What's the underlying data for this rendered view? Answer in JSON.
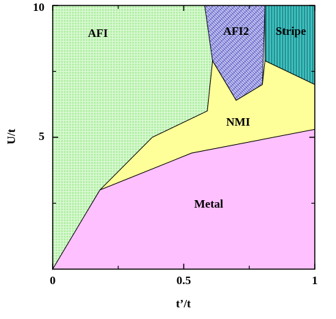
{
  "chart_data": {
    "type": "phase-diagram",
    "xlabel": "t’/t",
    "ylabel": "U/t",
    "xlim": [
      0,
      1
    ],
    "ylim": [
      0,
      10
    ],
    "xticks": [
      0,
      0.5,
      1
    ],
    "yticks": [
      5,
      10
    ],
    "xticks_minor": [
      0.25,
      0.75
    ],
    "yticks_minor": [
      2.5,
      7.5
    ],
    "regions": [
      {
        "name": "AFI",
        "color": "#b4f0a8",
        "x": [
          0,
          0,
          0.58,
          0.61,
          0.59,
          0.38,
          0.18
        ],
        "y": [
          0,
          10,
          10,
          7.9,
          6.0,
          5.0,
          3.0
        ]
      },
      {
        "name": "AFI2",
        "color": "#c4c4f4",
        "x": [
          0.58,
          0.61,
          0.7,
          0.8,
          0.81
        ],
        "y": [
          10,
          7.9,
          6.4,
          7.0,
          10
        ]
      },
      {
        "name": "Stripe",
        "color": "#40c4c4",
        "x": [
          0.81,
          0.81,
          1,
          1
        ],
        "y": [
          10,
          7.9,
          7.0,
          10
        ]
      },
      {
        "name": "NMI",
        "color": "#ffff99",
        "x": [
          0.18,
          0.38,
          0.59,
          0.61,
          0.7,
          0.8,
          0.81,
          1,
          1,
          0.53
        ],
        "y": [
          3.0,
          5.0,
          6.0,
          7.9,
          6.4,
          7.0,
          7.9,
          7.0,
          5.3,
          4.4
        ]
      },
      {
        "name": "Metal",
        "color": "#ffc0ff",
        "x": [
          0,
          0.18,
          0.53,
          1,
          1
        ],
        "y": [
          0,
          3.0,
          4.4,
          5.3,
          0
        ]
      }
    ]
  }
}
